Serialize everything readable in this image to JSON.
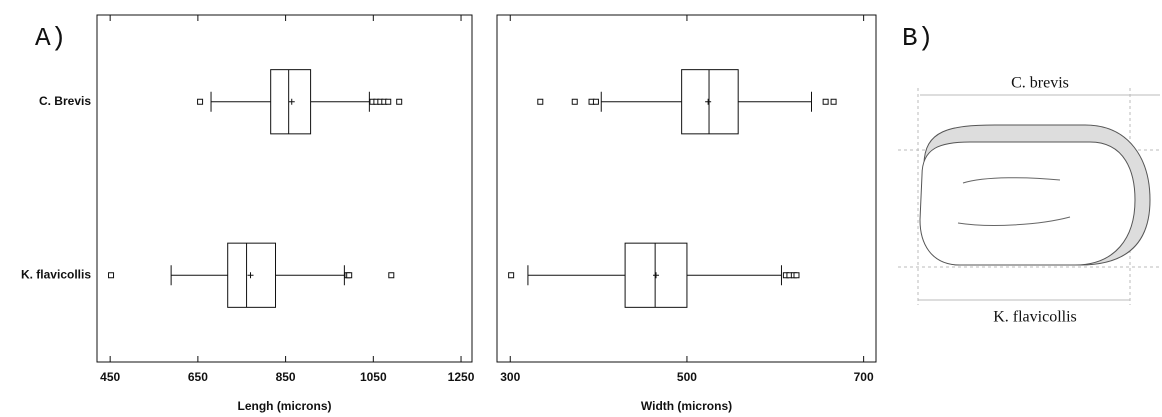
{
  "panel_labels": [
    "A)",
    "B)"
  ],
  "chart_data": [
    {
      "type": "box",
      "x_label": "Lengh (microns)",
      "categories": [
        "C. Brevis",
        "K. flavicollis"
      ],
      "boxes": [
        {
          "min": 680,
          "q1": 816,
          "median": 857,
          "q3": 907,
          "max": 1041,
          "mean": 864,
          "outliers": [
            655,
            1048,
            1057,
            1066,
            1075,
            1084,
            1109
          ]
        },
        {
          "min": 589,
          "q1": 718,
          "median": 761,
          "q3": 827,
          "max": 984,
          "mean": 770,
          "outliers": [
            452,
            991,
            995,
            1091
          ]
        }
      ],
      "xlim": [
        420,
        1275
      ],
      "xticks": [
        450,
        650,
        850,
        1050,
        1250
      ]
    },
    {
      "type": "box",
      "x_label": "Width (microns)",
      "categories": [
        null,
        null
      ],
      "boxes": [
        {
          "min": 403,
          "q1": 494,
          "median": 525,
          "q3": 558,
          "max": 641,
          "mean": 524,
          "outliers": [
            334,
            373,
            392,
            397,
            657,
            666
          ]
        },
        {
          "min": 320,
          "q1": 430,
          "median": 464,
          "q3": 500,
          "max": 607,
          "mean": 465,
          "outliers": [
            301,
            612,
            616,
            621,
            624
          ]
        }
      ],
      "xlim": [
        285,
        714
      ],
      "xticks": [
        300,
        500,
        700
      ]
    }
  ],
  "diagram": {
    "top_label": "C. brevis",
    "bottom_label": "K. flavicollis"
  }
}
